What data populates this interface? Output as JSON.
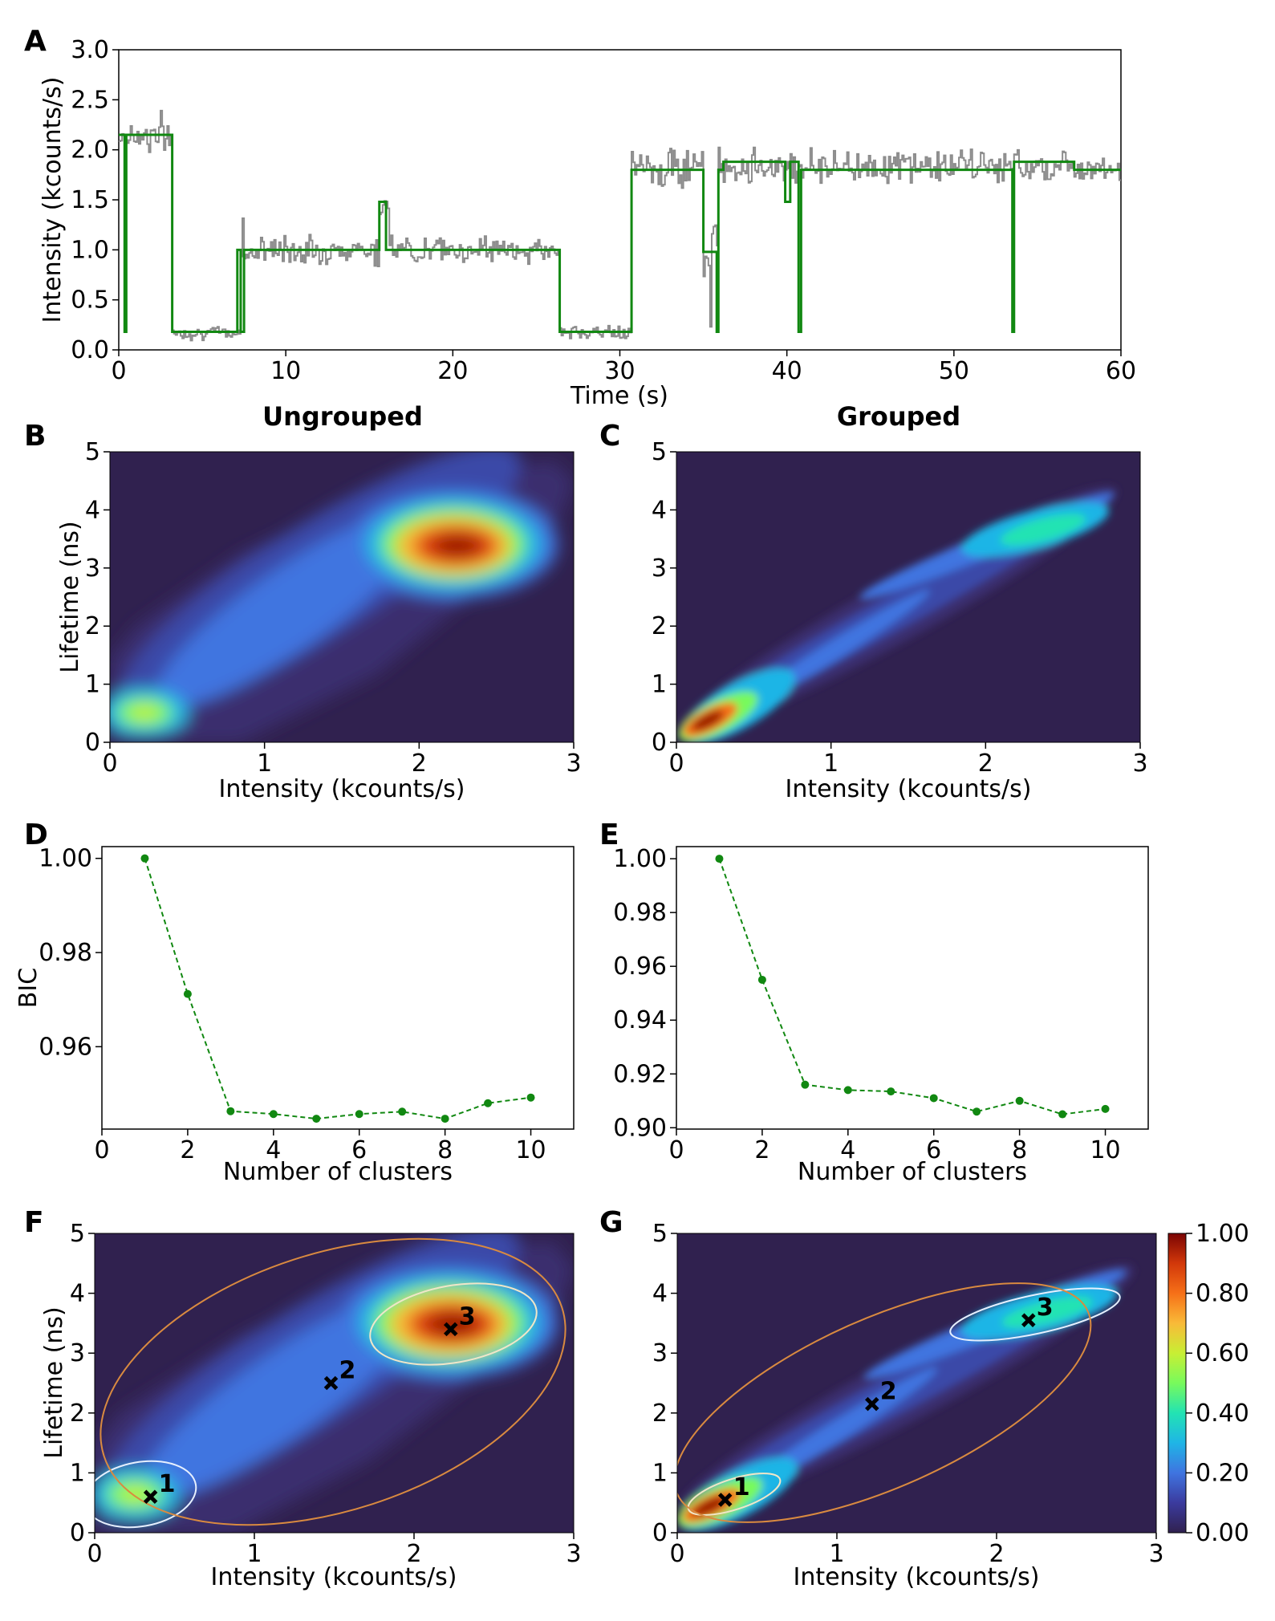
{
  "panels": {
    "A": "A",
    "B": "B",
    "C": "C",
    "D": "D",
    "E": "E",
    "F": "F",
    "G": "G"
  },
  "titles": {
    "B": "Ungrouped",
    "C": "Grouped"
  },
  "colors": {
    "trace": "#8c8c8c",
    "fit": "#118811",
    "bic": "#118811",
    "ellipse_inner": "#f0e6c8",
    "ellipse_outer": "#d98a40",
    "ellipse_white": "#e6f0ff",
    "bg": "#30214f",
    "axis": "#000000"
  },
  "chart_data": [
    {
      "id": "A",
      "type": "line",
      "xlabel": "Time (s)",
      "ylabel": "Intensity (kcounts/s)",
      "xlim": [
        0,
        60
      ],
      "ylim": [
        0,
        3.0
      ],
      "xticks": [
        "0",
        "10",
        "20",
        "30",
        "40",
        "50",
        "60"
      ],
      "yticks": [
        "0.0",
        "0.5",
        "1.0",
        "1.5",
        "2.0",
        "2.5",
        "3.0"
      ],
      "fit_steps": [
        [
          0,
          2.15
        ],
        [
          0.35,
          0.18
        ],
        [
          0.45,
          2.15
        ],
        [
          3.2,
          0.18
        ],
        [
          7.0,
          0.18
        ],
        [
          7.1,
          1.0
        ],
        [
          7.3,
          0.18
        ],
        [
          7.5,
          1.0
        ],
        [
          15.6,
          1.48
        ],
        [
          16.0,
          1.0
        ],
        [
          26.4,
          0.18
        ],
        [
          30.7,
          1.8
        ],
        [
          35.0,
          0.98
        ],
        [
          35.8,
          0.18
        ],
        [
          35.9,
          1.8
        ],
        [
          36.2,
          1.88
        ],
        [
          39.9,
          1.48
        ],
        [
          40.2,
          1.88
        ],
        [
          40.7,
          0.18
        ],
        [
          40.85,
          1.8
        ],
        [
          53.5,
          0.18
        ],
        [
          53.6,
          1.88
        ],
        [
          57.2,
          1.8
        ],
        [
          60,
          1.8
        ]
      ],
      "raw_levels": [
        [
          0,
          3.2,
          2.15,
          0.12
        ],
        [
          3.2,
          7.2,
          0.17,
          0.04
        ],
        [
          7.4,
          26.4,
          1.0,
          0.08
        ],
        [
          26.4,
          30.7,
          0.17,
          0.04
        ],
        [
          30.7,
          35.0,
          1.82,
          0.12
        ],
        [
          35.0,
          35.8,
          0.9,
          0.4
        ],
        [
          35.9,
          60,
          1.84,
          0.1
        ]
      ]
    },
    {
      "id": "B",
      "type": "heatmap",
      "title": "Ungrouped",
      "xlabel": "Intensity (kcounts/s)",
      "ylabel": "Lifetime (ns)",
      "xlim": [
        0,
        3
      ],
      "ylim": [
        0,
        5
      ],
      "xticks": [
        "0",
        "1",
        "2",
        "3"
      ],
      "yticks": [
        "0",
        "1",
        "2",
        "3",
        "4",
        "5"
      ]
    },
    {
      "id": "C",
      "type": "heatmap",
      "title": "Grouped",
      "xlabel": "Intensity (kcounts/s)",
      "ylabel": "",
      "xlim": [
        0,
        3
      ],
      "ylim": [
        0,
        5
      ],
      "xticks": [
        "0",
        "1",
        "2",
        "3"
      ],
      "yticks": [
        "0",
        "1",
        "2",
        "3",
        "4",
        "5"
      ]
    },
    {
      "id": "D",
      "type": "line",
      "xlabel": "Number of clusters",
      "ylabel": "BIC",
      "x": [
        1,
        2,
        3,
        4,
        5,
        6,
        7,
        8,
        9,
        10
      ],
      "y": [
        1.0,
        0.9712,
        0.9463,
        0.9457,
        0.9447,
        0.9457,
        0.9462,
        0.9447,
        0.948,
        0.9492
      ],
      "xlim": [
        0,
        11
      ],
      "ylim": [
        0.9425,
        1.0025
      ],
      "xticks": [
        "0",
        "2",
        "4",
        "6",
        "8",
        "10"
      ],
      "yticks": [
        "0.96",
        "0.98",
        "1.00"
      ]
    },
    {
      "id": "E",
      "type": "line",
      "xlabel": "Number of clusters",
      "ylabel": "",
      "x": [
        1,
        2,
        3,
        4,
        5,
        6,
        7,
        8,
        9,
        10
      ],
      "y": [
        1.0,
        0.955,
        0.916,
        0.914,
        0.9135,
        0.911,
        0.906,
        0.91,
        0.905,
        0.907
      ],
      "xlim": [
        0,
        11
      ],
      "ylim": [
        0.8995,
        1.0045
      ],
      "xticks": [
        "0",
        "2",
        "4",
        "6",
        "8",
        "10"
      ],
      "yticks": [
        "0.90",
        "0.92",
        "0.94",
        "0.96",
        "0.98",
        "1.00"
      ]
    },
    {
      "id": "F",
      "type": "heatmap",
      "xlabel": "Intensity (kcounts/s)",
      "ylabel": "Lifetime (ns)",
      "xlim": [
        0,
        3
      ],
      "ylim": [
        0,
        5
      ],
      "xticks": [
        "0",
        "1",
        "2",
        "3"
      ],
      "yticks": [
        "0",
        "1",
        "2",
        "3",
        "4",
        "5"
      ],
      "clusters": [
        {
          "label": "1",
          "x": 0.35,
          "y": 0.6
        },
        {
          "label": "2",
          "x": 1.48,
          "y": 2.5
        },
        {
          "label": "3",
          "x": 2.23,
          "y": 3.4
        }
      ]
    },
    {
      "id": "G",
      "type": "heatmap",
      "xlabel": "Intensity (kcounts/s)",
      "ylabel": "",
      "xlim": [
        0,
        3
      ],
      "ylim": [
        0,
        5
      ],
      "xticks": [
        "0",
        "1",
        "2",
        "3"
      ],
      "yticks": [
        "0",
        "1",
        "2",
        "3",
        "4",
        "5"
      ],
      "clusters": [
        {
          "label": "1",
          "x": 0.3,
          "y": 0.55
        },
        {
          "label": "2",
          "x": 1.22,
          "y": 2.15
        },
        {
          "label": "3",
          "x": 2.2,
          "y": 3.55
        }
      ],
      "colorbar": {
        "ticks": [
          "0.00",
          "0.20",
          "0.40",
          "0.60",
          "0.80",
          "1.00"
        ],
        "range": [
          0,
          1
        ]
      }
    }
  ]
}
